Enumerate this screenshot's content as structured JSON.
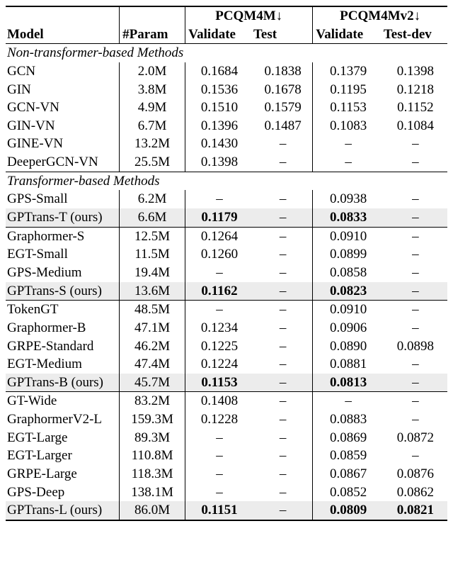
{
  "header": {
    "model": "Model",
    "param": "#Param",
    "g1": "PCQM4M↓",
    "g2": "PCQM4Mv2↓",
    "val1": "Validate",
    "test1": "Test",
    "val2": "Validate",
    "test2": "Test-dev"
  },
  "sections": {
    "s1": {
      "head": "Non-transformer-based Methods",
      "r": [
        {
          "m": "GCN",
          "p": "2.0M",
          "v1": "0.1684",
          "t1": "0.1838",
          "v2": "0.1379",
          "t2": "0.1398"
        },
        {
          "m": "GIN",
          "p": "3.8M",
          "v1": "0.1536",
          "t1": "0.1678",
          "v2": "0.1195",
          "t2": "0.1218"
        },
        {
          "m": "GCN-VN",
          "p": "4.9M",
          "v1": "0.1510",
          "t1": "0.1579",
          "v2": "0.1153",
          "t2": "0.1152"
        },
        {
          "m": "GIN-VN",
          "p": "6.7M",
          "v1": "0.1396",
          "t1": "0.1487",
          "v2": "0.1083",
          "t2": "0.1084"
        },
        {
          "m": "GINE-VN",
          "p": "13.2M",
          "v1": "0.1430",
          "t1": "–",
          "v2": "–",
          "t2": "–"
        },
        {
          "m": "DeeperGCN-VN",
          "p": "25.5M",
          "v1": "0.1398",
          "t1": "–",
          "v2": "–",
          "t2": "–"
        }
      ]
    },
    "s2": {
      "head": "Transformer-based Methods",
      "r": [
        {
          "m": "GPS-Small",
          "p": "6.2M",
          "v1": "–",
          "t1": "–",
          "v2": "0.0938",
          "t2": "–"
        },
        {
          "m": "GPTrans-T (ours)",
          "p": "6.6M",
          "v1": "0.1179",
          "t1": "–",
          "v2": "0.0833",
          "t2": "–",
          "hl": true,
          "bold": {
            "v1": true,
            "v2": true
          }
        }
      ]
    },
    "s3": {
      "r": [
        {
          "m": "Graphormer-S",
          "p": "12.5M",
          "v1": "0.1264",
          "t1": "–",
          "v2": "0.0910",
          "t2": "–"
        },
        {
          "m": "EGT-Small",
          "p": "11.5M",
          "v1": "0.1260",
          "t1": "–",
          "v2": "0.0899",
          "t2": "–"
        },
        {
          "m": "GPS-Medium",
          "p": "19.4M",
          "v1": "–",
          "t1": "–",
          "v2": "0.0858",
          "t2": "–"
        },
        {
          "m": "GPTrans-S (ours)",
          "p": "13.6M",
          "v1": "0.1162",
          "t1": "–",
          "v2": "0.0823",
          "t2": "–",
          "hl": true,
          "bold": {
            "v1": true,
            "v2": true
          }
        }
      ]
    },
    "s4": {
      "r": [
        {
          "m": "TokenGT",
          "p": "48.5M",
          "v1": "–",
          "t1": "–",
          "v2": "0.0910",
          "t2": "–"
        },
        {
          "m": "Graphormer-B",
          "p": "47.1M",
          "v1": "0.1234",
          "t1": "–",
          "v2": "0.0906",
          "t2": "–"
        },
        {
          "m": "GRPE-Standard",
          "p": "46.2M",
          "v1": "0.1225",
          "t1": "–",
          "v2": "0.0890",
          "t2": "0.0898"
        },
        {
          "m": "EGT-Medium",
          "p": "47.4M",
          "v1": "0.1224",
          "t1": "–",
          "v2": "0.0881",
          "t2": "–"
        },
        {
          "m": "GPTrans-B (ours)",
          "p": "45.7M",
          "v1": "0.1153",
          "t1": "–",
          "v2": "0.0813",
          "t2": "–",
          "hl": true,
          "bold": {
            "v1": true,
            "v2": true
          }
        }
      ]
    },
    "s5": {
      "r": [
        {
          "m": "GT-Wide",
          "p": "83.2M",
          "v1": "0.1408",
          "t1": "–",
          "v2": "–",
          "t2": "–"
        },
        {
          "m": "GraphormerV2-L",
          "p": "159.3M",
          "v1": "0.1228",
          "t1": "–",
          "v2": "0.0883",
          "t2": "–"
        },
        {
          "m": "EGT-Large",
          "p": "89.3M",
          "v1": "–",
          "t1": "–",
          "v2": "0.0869",
          "t2": "0.0872"
        },
        {
          "m": "EGT-Larger",
          "p": "110.8M",
          "v1": "–",
          "t1": "–",
          "v2": "0.0859",
          "t2": "–"
        },
        {
          "m": "GRPE-Large",
          "p": "118.3M",
          "v1": "–",
          "t1": "–",
          "v2": "0.0867",
          "t2": "0.0876"
        },
        {
          "m": "GPS-Deep",
          "p": "138.1M",
          "v1": "–",
          "t1": "–",
          "v2": "0.0852",
          "t2": "0.0862"
        },
        {
          "m": "GPTrans-L (ours)",
          "p": "86.0M",
          "v1": "0.1151",
          "t1": "–",
          "v2": "0.0809",
          "t2": "0.0821",
          "hl": true,
          "bold": {
            "v1": true,
            "v2": true,
            "t2": true
          }
        }
      ]
    }
  }
}
